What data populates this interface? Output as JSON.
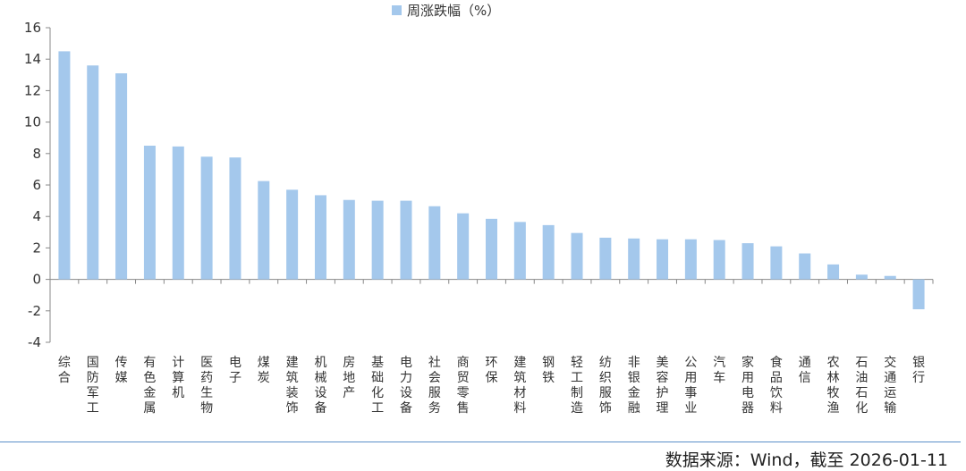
{
  "chart_data": {
    "type": "bar",
    "legend": {
      "label": "周涨跌幅（%）",
      "position": "top-center"
    },
    "categories": [
      "综合",
      "国防军工",
      "传媒",
      "有色金属",
      "计算机",
      "医药生物",
      "电子",
      "煤炭",
      "建筑装饰",
      "机械设备",
      "房地产",
      "基础化工",
      "电力设备",
      "社会服务",
      "商贸零售",
      "环保",
      "建筑材料",
      "钢铁",
      "轻工制造",
      "纺织服饰",
      "非银金融",
      "美容护理",
      "公用事业",
      "汽车",
      "家用电器",
      "食品饮料",
      "通信",
      "农林牧渔",
      "石油石化",
      "交通运输",
      "银行"
    ],
    "values": [
      14.5,
      13.6,
      13.1,
      8.5,
      8.45,
      7.8,
      7.75,
      6.25,
      5.7,
      5.35,
      5.05,
      5.0,
      5.0,
      4.65,
      4.2,
      3.85,
      3.65,
      3.45,
      2.95,
      2.65,
      2.6,
      2.55,
      2.55,
      2.5,
      2.3,
      2.1,
      1.65,
      0.95,
      0.3,
      0.22,
      -1.9
    ],
    "ylim": [
      -4,
      16
    ],
    "yticks": [
      -4,
      -2,
      0,
      2,
      4,
      6,
      8,
      10,
      12,
      14,
      16
    ],
    "grid": false,
    "bar_color": "#a4c8ec",
    "axis_color": "#888888"
  },
  "footer": {
    "source": "数据来源：Wind，截至  2026-01-11",
    "line_color": "#5b8fc9"
  }
}
